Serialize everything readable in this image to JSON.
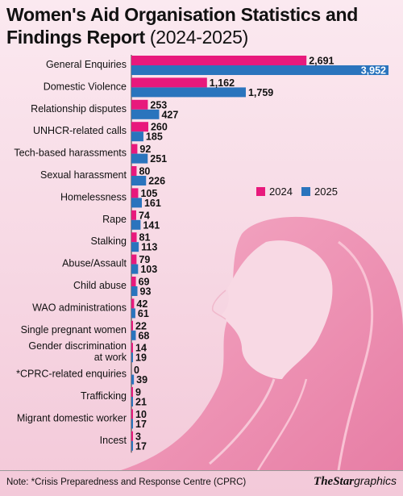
{
  "title": {
    "bold": "Women's Aid Organisation Statistics and Findings Report",
    "light": "(2024-2025)"
  },
  "colors": {
    "s2024": "#e8197c",
    "s2025": "#2a74bd",
    "background": "#f6dbe6",
    "hair": "#ec8fb0"
  },
  "footer": {
    "note": "Note: *Crisis Preparedness and Response Centre (CPRC)",
    "brand_the": "The",
    "brand_star": "Star",
    "brand_graphics": "graphics"
  },
  "chart_data": {
    "type": "bar",
    "orientation": "horizontal",
    "categories": [
      "General Enquiries",
      "Domestic Violence",
      "Relationship disputes",
      "UNHCR-related calls",
      "Tech-based harassments",
      "Sexual harassment",
      "Homelessness",
      "Rape",
      "Stalking",
      "Abuse/Assault",
      "Child abuse",
      "WAO administrations",
      "Single pregnant women",
      "Gender discrimination at work",
      "*CPRC-related enquiries",
      "Trafficking",
      "Migrant domestic worker",
      "Incest"
    ],
    "series": [
      {
        "name": "2024",
        "color": "#e8197c",
        "values": [
          2691,
          1162,
          253,
          260,
          92,
          80,
          105,
          74,
          81,
          79,
          69,
          42,
          22,
          14,
          0,
          9,
          10,
          3
        ]
      },
      {
        "name": "2025",
        "color": "#2a74bd",
        "values": [
          3952,
          1759,
          427,
          185,
          251,
          226,
          161,
          141,
          113,
          103,
          93,
          61,
          68,
          19,
          39,
          21,
          17,
          17
        ]
      }
    ],
    "value_labels": {
      "2024": [
        "2,691",
        "1,162",
        "253",
        "260",
        "92",
        "80",
        "105",
        "74",
        "81",
        "79",
        "69",
        "42",
        "22",
        "14",
        "0",
        "9",
        "10",
        "3"
      ],
      "2025": [
        "3,952",
        "1,759",
        "427",
        "185",
        "251",
        "226",
        "161",
        "141",
        "113",
        "103",
        "93",
        "61",
        "68",
        "19",
        "39",
        "21",
        "17",
        "17"
      ]
    },
    "xlim": [
      0,
      3952
    ],
    "grid": false,
    "legend_placement": "center-right"
  }
}
